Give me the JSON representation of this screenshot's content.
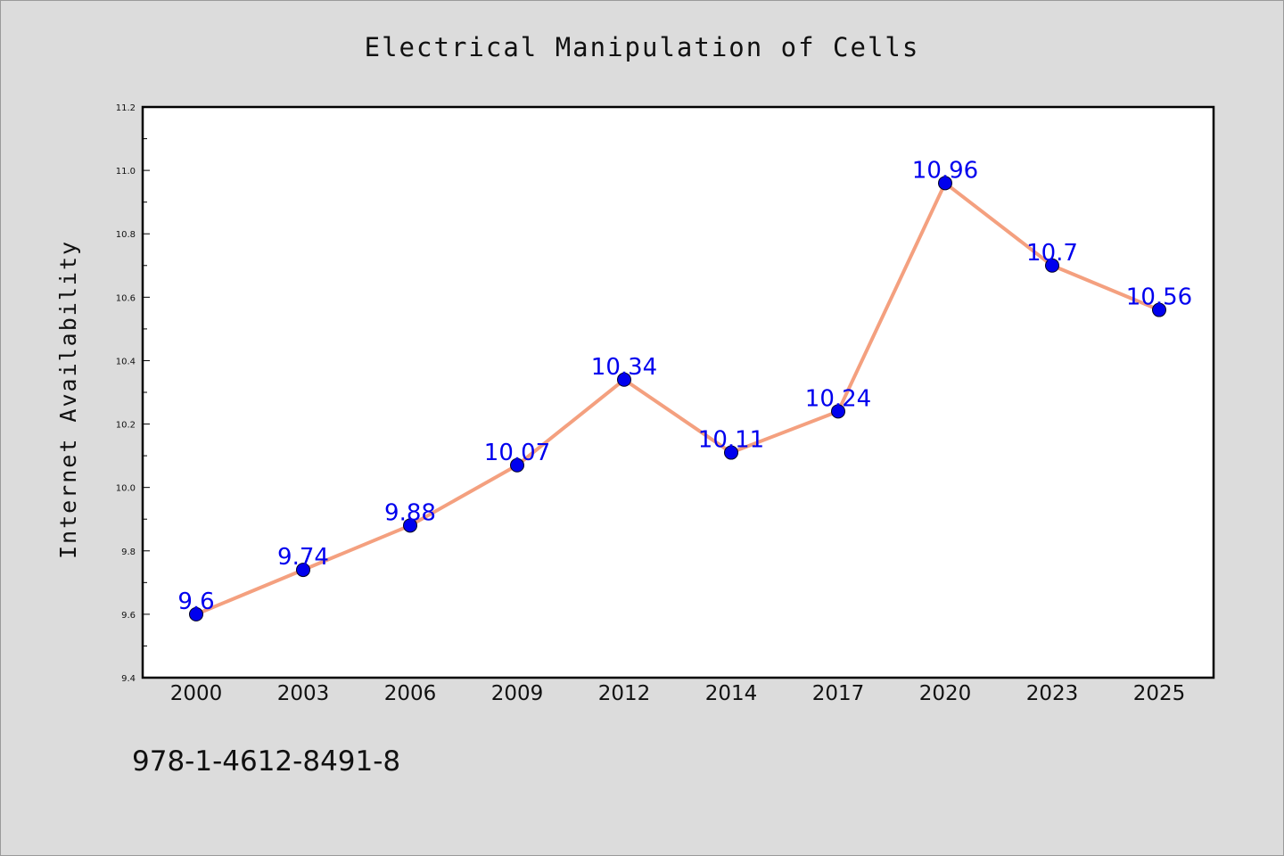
{
  "chart_data": {
    "type": "line",
    "title": "Electrical Manipulation of Cells",
    "xlabel": "",
    "ylabel": "Internet Availability",
    "categories": [
      "2000",
      "2003",
      "2006",
      "2009",
      "2012",
      "2014",
      "2017",
      "2020",
      "2023",
      "2025"
    ],
    "series": [
      {
        "values": [
          9.6,
          9.74,
          9.88,
          10.07,
          10.34,
          10.11,
          10.24,
          10.96,
          10.7,
          10.56
        ],
        "labels": [
          "9.6",
          "9.74",
          "9.88",
          "10.07",
          "10.34",
          "10.11",
          "10.24",
          "10.96",
          "10.7",
          "10.56"
        ],
        "line_color": "#f4a07f",
        "marker_color": "#0000ee"
      }
    ],
    "ylim": [
      9.4,
      11.2
    ],
    "yticks": [
      "9.4",
      "9.6",
      "9.8",
      "10.0",
      "10.2",
      "10.4",
      "10.6",
      "10.8",
      "11.0",
      "11.2"
    ],
    "grid": false,
    "label_color": "#0000ee"
  },
  "footer": {
    "isbn": "978-1-4612-8491-8"
  }
}
